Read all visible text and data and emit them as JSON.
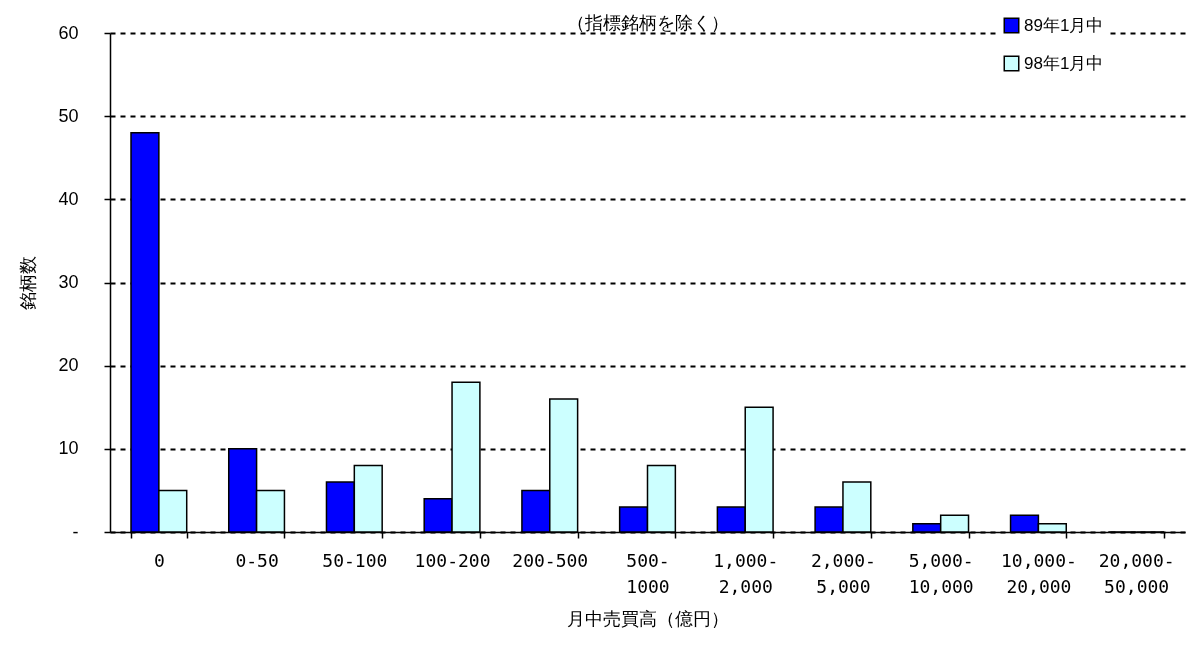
{
  "chart_data": {
    "type": "bar",
    "title": "（指標銘柄を除く）",
    "xlabel": "月中売買高（億円）",
    "ylabel": "銘柄数",
    "categories": [
      "0",
      "0-50",
      "50-100",
      "100-200",
      "200-500",
      "500-1000",
      "1,000-2,000",
      "2,000-5,000",
      "5,000-10,000",
      "10,000-20,000",
      "20,000-50,000"
    ],
    "series": [
      {
        "name": "89年1月中",
        "color": "#0000ff",
        "values": [
          48,
          10,
          6,
          4,
          5,
          3,
          3,
          3,
          1,
          2,
          0
        ]
      },
      {
        "name": "98年1月中",
        "color": "#ccffff",
        "values": [
          5,
          5,
          8,
          18,
          16,
          8,
          15,
          6,
          2,
          1,
          0
        ]
      }
    ],
    "ylim": [
      0,
      60
    ],
    "yticks": [
      {
        "value": 0,
        "label": "-"
      },
      10,
      20,
      30,
      40,
      50,
      60
    ],
    "grid": "y",
    "legend": "top right"
  }
}
